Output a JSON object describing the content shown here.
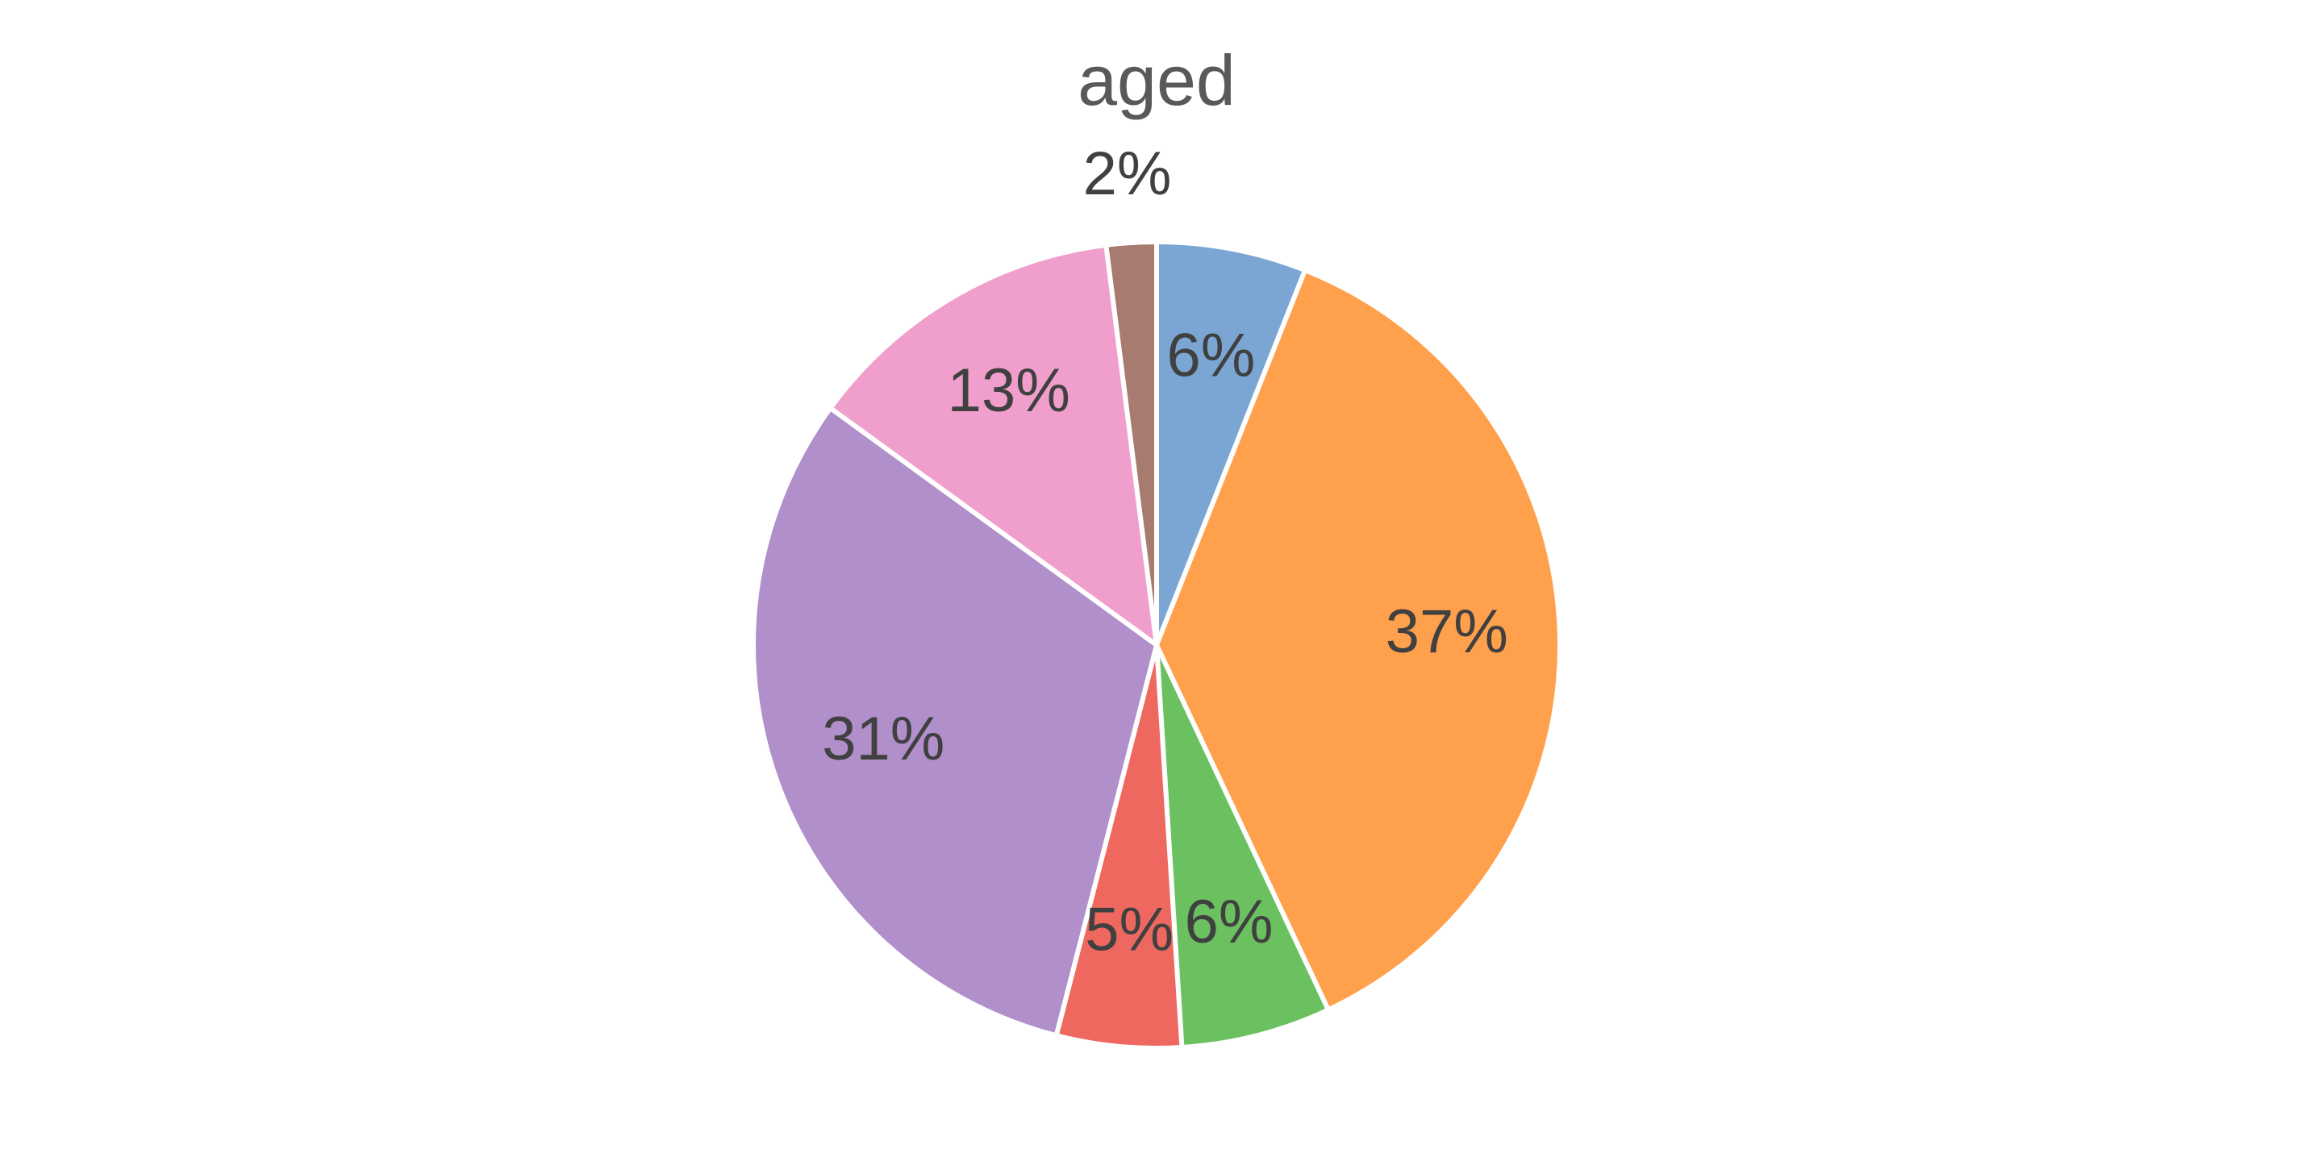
{
  "chart_data": {
    "type": "pie",
    "title": "aged",
    "start_angle_deg": 0,
    "direction": "clockwise",
    "slices": [
      {
        "value": 6,
        "label": "6%",
        "color": "#7ba6d4"
      },
      {
        "value": 37,
        "label": "37%",
        "color": "#ffa04d"
      },
      {
        "value": 6,
        "label": "6%",
        "color": "#6bc160"
      },
      {
        "value": 5,
        "label": "5%",
        "color": "#ee6860"
      },
      {
        "value": 31,
        "label": "31%",
        "color": "#b08fcb"
      },
      {
        "value": 13,
        "label": "13%",
        "color": "#f09fcc"
      },
      {
        "value": 2,
        "label": "2%",
        "color": "#a87b70"
      }
    ],
    "legend": "none"
  }
}
